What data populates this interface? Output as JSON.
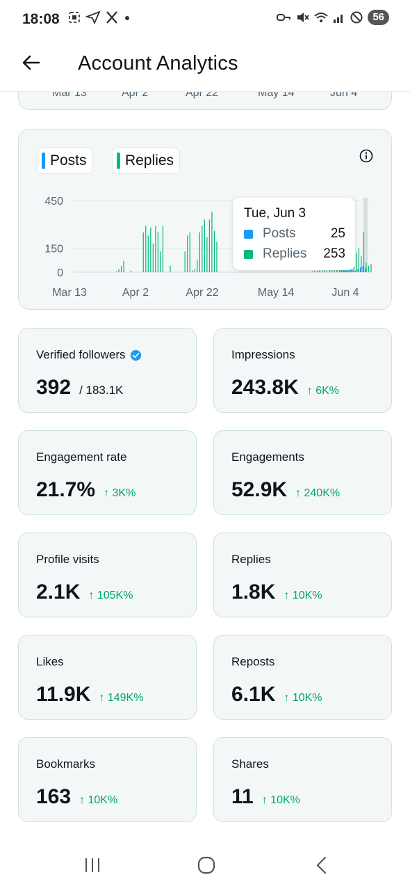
{
  "status_bar": {
    "time": "18:08",
    "battery": "56",
    "left_icons": [
      "screenshot-icon",
      "send-icon",
      "x-logo-icon",
      "dot-icon"
    ],
    "right_icons": [
      "key-icon",
      "mute-icon",
      "wifi-icon",
      "signal-icon",
      "dnd-icon"
    ]
  },
  "header": {
    "title": "Account Analytics"
  },
  "prev_chart": {
    "x_ticks": [
      "Mar 13",
      "Apr 2",
      "Apr 22",
      "May 14",
      "Jun 4"
    ]
  },
  "chart": {
    "legend": [
      {
        "label": "Posts",
        "color": "#1d9bf0"
      },
      {
        "label": "Replies",
        "color": "#00ba7c"
      }
    ],
    "tooltip": {
      "date": "Tue, Jun 3",
      "rows": [
        {
          "label": "Posts",
          "value": "25",
          "color": "#1d9bf0"
        },
        {
          "label": "Replies",
          "value": "253",
          "color": "#00ba7c"
        }
      ]
    }
  },
  "chart_data": {
    "type": "bar",
    "y_ticks": [
      "450",
      "150",
      "0"
    ],
    "x_ticks": [
      "Mar 13",
      "Apr 2",
      "Apr 22",
      "May 14",
      "Jun 4"
    ],
    "ylim": [
      0,
      450
    ],
    "series": [
      {
        "name": "Posts",
        "color": "#1d9bf0",
        "values": [
          0,
          0,
          0,
          0,
          0,
          0,
          0,
          0,
          0,
          0,
          0,
          0,
          0,
          0,
          0,
          0,
          0,
          0,
          0,
          0,
          0,
          0,
          0,
          0,
          0,
          0,
          0,
          0,
          0,
          0,
          0,
          0,
          0,
          0,
          0,
          0,
          0,
          0,
          0,
          0,
          0,
          0,
          0,
          0,
          0,
          0,
          0,
          0,
          0,
          0,
          0,
          0,
          0,
          0,
          0,
          0,
          0,
          0,
          0,
          0,
          0,
          0,
          0,
          0,
          0,
          0,
          0,
          0,
          0,
          0,
          0,
          0,
          0,
          0,
          0,
          0,
          0,
          0,
          0,
          0,
          0,
          0,
          0,
          0,
          0,
          0,
          0,
          0,
          0,
          0,
          0,
          0,
          0,
          0,
          0,
          0,
          0,
          0,
          0,
          0,
          0,
          0,
          0,
          0,
          0,
          0,
          0,
          0,
          0,
          10,
          15,
          20,
          25,
          20,
          15,
          10,
          20,
          30,
          40,
          25
        ]
      },
      {
        "name": "Replies",
        "color": "#00ba7c",
        "values": [
          0,
          0,
          0,
          0,
          0,
          0,
          0,
          0,
          0,
          0,
          0,
          0,
          0,
          0,
          0,
          0,
          0,
          5,
          20,
          40,
          70,
          0,
          0,
          10,
          0,
          0,
          0,
          0,
          250,
          290,
          230,
          280,
          180,
          290,
          250,
          130,
          290,
          0,
          0,
          40,
          0,
          0,
          0,
          0,
          0,
          130,
          230,
          250,
          10,
          20,
          80,
          250,
          290,
          330,
          220,
          330,
          380,
          260,
          190,
          0,
          0,
          0,
          0,
          0,
          0,
          0,
          0,
          0,
          0,
          0,
          0,
          0,
          0,
          0,
          0,
          0,
          0,
          0,
          0,
          0,
          0,
          0,
          0,
          0,
          0,
          0,
          0,
          0,
          0,
          0,
          0,
          0,
          0,
          0,
          0,
          0,
          0,
          5,
          10,
          10,
          15,
          10,
          15,
          10,
          20,
          25,
          30,
          20,
          15,
          30,
          40,
          60,
          50,
          80,
          60,
          120,
          150,
          100,
          253,
          60,
          40,
          50
        ]
      }
    ]
  },
  "metrics": [
    {
      "label": "Verified followers",
      "value": "392",
      "total": "/ 183.1K",
      "change": "",
      "verified": true
    },
    {
      "label": "Impressions",
      "value": "243.8K",
      "total": "",
      "change": "↑ 6K%",
      "verified": false
    },
    {
      "label": "Engagement rate",
      "value": "21.7%",
      "total": "",
      "change": "↑ 3K%",
      "verified": false
    },
    {
      "label": "Engagements",
      "value": "52.9K",
      "total": "",
      "change": "↑ 240K%",
      "verified": false
    },
    {
      "label": "Profile visits",
      "value": "2.1K",
      "total": "",
      "change": "↑ 105K%",
      "verified": false
    },
    {
      "label": "Replies",
      "value": "1.8K",
      "total": "",
      "change": "↑ 10K%",
      "verified": false
    },
    {
      "label": "Likes",
      "value": "11.9K",
      "total": "",
      "change": "↑ 149K%",
      "verified": false
    },
    {
      "label": "Reposts",
      "value": "6.1K",
      "total": "",
      "change": "↑ 10K%",
      "verified": false
    },
    {
      "label": "Bookmarks",
      "value": "163",
      "total": "",
      "change": "↑ 10K%",
      "verified": false
    },
    {
      "label": "Shares",
      "value": "11",
      "total": "",
      "change": "↑ 10K%",
      "verified": false
    }
  ],
  "nav": [
    "recents-icon",
    "home-icon",
    "back-icon"
  ]
}
